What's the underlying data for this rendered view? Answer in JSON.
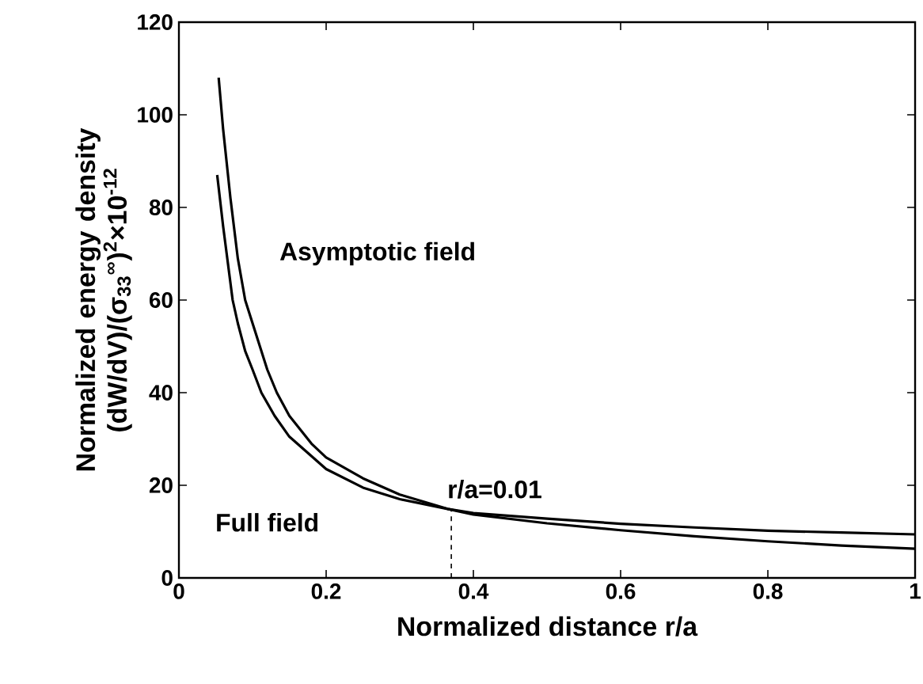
{
  "chart_data": {
    "type": "line",
    "xlabel": "Normalized distance r/a",
    "ylabel": "Normalized energy density (dW/dV)/(σ$_{33}$$^{∞}$)$^{2}$×10$^{-12}$",
    "xlim": [
      0,
      1
    ],
    "ylim": [
      0,
      120
    ],
    "xticks": [
      0,
      0.2,
      0.4,
      0.6,
      0.8,
      1
    ],
    "yticks": [
      0,
      20,
      40,
      60,
      80,
      100,
      120
    ],
    "grid": false,
    "legend": false,
    "marker": "none",
    "line_style": "solid",
    "annotations": [
      {
        "text": "r/a=0.01",
        "x": 0.37,
        "y": 14.9
      }
    ],
    "series": [
      {
        "name": "Asymptotic field",
        "color": "#000000",
        "x": [
          0.054,
          0.06,
          0.07,
          0.08,
          0.09,
          0.1,
          0.12,
          0.133,
          0.15,
          0.18,
          0.2,
          0.25,
          0.3,
          0.365,
          0.4,
          0.5,
          0.6,
          0.7,
          0.8,
          0.9,
          1
        ],
        "values": [
          108,
          97,
          82,
          69,
          60,
          55,
          45,
          40,
          35,
          29,
          26,
          21.5,
          18,
          14.9,
          13.7,
          11.8,
          10.3,
          9,
          7.9,
          7,
          6.3
        ]
      },
      {
        "name": "Full field",
        "color": "#000000",
        "x": [
          0.052,
          0.06,
          0.073,
          0.08,
          0.09,
          0.1,
          0.112,
          0.13,
          0.15,
          0.2,
          0.25,
          0.3,
          0.365,
          0.4,
          0.5,
          0.6,
          0.7,
          0.8,
          0.9,
          1
        ],
        "values": [
          87,
          76,
          60,
          55,
          49,
          45,
          40,
          35,
          30.5,
          23.5,
          19.5,
          17,
          14.9,
          14,
          12.8,
          11.7,
          10.9,
          10.2,
          9.8,
          9.4
        ]
      }
    ]
  }
}
